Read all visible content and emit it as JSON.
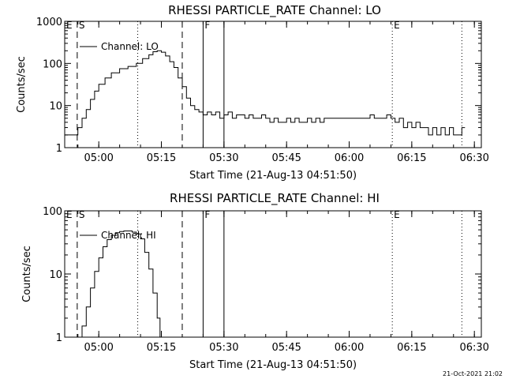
{
  "footer": {
    "timestamp": "21-Oct-2021 21:02"
  },
  "chart_data": [
    {
      "type": "line",
      "title": "RHESSI PARTICLE_RATE Channel: LO",
      "xlabel": "Start Time (21-Aug-13 04:51:50)",
      "ylabel": "Counts/sec",
      "yscale": "log",
      "ylim": [
        1,
        1000
      ],
      "y_ticks": [
        1,
        10,
        100,
        1000
      ],
      "y_tick_labels": [
        "1",
        "10",
        "100",
        "1000"
      ],
      "xlim": [
        "04:51:50",
        "06:31:40"
      ],
      "x_ticks": [
        "05:00",
        "05:15",
        "05:30",
        "05:45",
        "06:00",
        "06:15",
        "06:30"
      ],
      "legend": {
        "label": "Channel: LO",
        "position": "top-left"
      },
      "markers": [
        {
          "label": "E",
          "time": "04:51:50",
          "style": "dotted"
        },
        {
          "label": "S",
          "time": "04:54:50",
          "style": "dashed"
        },
        {
          "label": "",
          "time": "05:09:20",
          "style": "dotted"
        },
        {
          "label": "",
          "time": "05:20:00",
          "style": "dashed"
        },
        {
          "label": "F",
          "time": "05:25:00",
          "style": "solid"
        },
        {
          "label": "",
          "time": "05:30:00",
          "style": "solid"
        },
        {
          "label": "E",
          "time": "06:10:20",
          "style": "dotted"
        },
        {
          "label": "",
          "time": "06:27:00",
          "style": "dotted"
        }
      ],
      "series": [
        {
          "name": "Channel: LO",
          "x": [
            "04:51:50",
            "04:54:20",
            "04:55:00",
            "04:56:00",
            "04:57:00",
            "04:58:00",
            "04:59:00",
            "05:00:00",
            "05:01:30",
            "05:03:00",
            "05:05:00",
            "05:07:00",
            "05:09:00",
            "05:10:30",
            "05:12:00",
            "05:13:00",
            "05:14:00",
            "05:15:00",
            "05:16:00",
            "05:17:00",
            "05:18:00",
            "05:19:00",
            "05:20:00",
            "05:21:00",
            "05:22:00",
            "05:23:00",
            "05:24:00",
            "05:25:00",
            "05:26:00",
            "05:27:00",
            "05:28:00",
            "05:29:00",
            "05:30:00",
            "05:31:00",
            "05:32:00",
            "05:33:00",
            "05:34:00",
            "05:35:00",
            "05:36:00",
            "05:37:00",
            "05:38:00",
            "05:39:00",
            "05:40:00",
            "05:41:00",
            "05:42:00",
            "05:43:00",
            "05:44:00",
            "05:45:00",
            "05:46:00",
            "05:47:00",
            "05:48:00",
            "05:49:00",
            "05:50:00",
            "05:51:00",
            "05:52:00",
            "05:53:00",
            "05:54:00",
            "05:55:00",
            "05:56:00",
            "05:57:00",
            "05:58:00",
            "05:59:00",
            "06:00:00",
            "06:01:00",
            "06:02:00",
            "06:03:00",
            "06:04:00",
            "06:05:00",
            "06:06:00",
            "06:07:00",
            "06:08:00",
            "06:09:00",
            "06:10:00",
            "06:11:00",
            "06:12:00",
            "06:13:00",
            "06:14:00",
            "06:15:00",
            "06:16:00",
            "06:17:00",
            "06:18:00",
            "06:19:00",
            "06:20:00",
            "06:21:00",
            "06:22:00",
            "06:23:00",
            "06:24:00",
            "06:25:00",
            "06:26:00",
            "06:27:00"
          ],
          "y": [
            2,
            2,
            3,
            5,
            8,
            14,
            22,
            32,
            45,
            60,
            75,
            85,
            100,
            130,
            160,
            190,
            200,
            185,
            150,
            110,
            80,
            45,
            28,
            15,
            10,
            8,
            7,
            6,
            7,
            6,
            7,
            5,
            6,
            7,
            5,
            6,
            6,
            5,
            6,
            5,
            5,
            6,
            5,
            4,
            5,
            4,
            4,
            5,
            4,
            5,
            4,
            4,
            5,
            4,
            5,
            4,
            5,
            5,
            5,
            5,
            5,
            5,
            5,
            5,
            5,
            5,
            5,
            6,
            5,
            5,
            5,
            6,
            5,
            4,
            5,
            3,
            4,
            3,
            4,
            3,
            3,
            2,
            3,
            2,
            3,
            2,
            3,
            2,
            2,
            3
          ]
        }
      ]
    },
    {
      "type": "line",
      "title": "RHESSI PARTICLE_RATE Channel: HI",
      "xlabel": "Start Time (21-Aug-13 04:51:50)",
      "ylabel": "Counts/sec",
      "yscale": "log",
      "ylim": [
        1,
        100
      ],
      "y_ticks": [
        1,
        10,
        100
      ],
      "y_tick_labels": [
        "1",
        "10",
        "100"
      ],
      "xlim": [
        "04:51:50",
        "06:31:40"
      ],
      "x_ticks": [
        "05:00",
        "05:15",
        "05:30",
        "05:45",
        "06:00",
        "06:15",
        "06:30"
      ],
      "legend": {
        "label": "Channel: HI",
        "position": "top-left"
      },
      "markers": [
        {
          "label": "E",
          "time": "04:51:50",
          "style": "dotted"
        },
        {
          "label": "S",
          "time": "04:54:50",
          "style": "dashed"
        },
        {
          "label": "",
          "time": "05:09:20",
          "style": "dotted"
        },
        {
          "label": "",
          "time": "05:20:00",
          "style": "dashed"
        },
        {
          "label": "F",
          "time": "05:25:00",
          "style": "solid"
        },
        {
          "label": "",
          "time": "05:30:00",
          "style": "solid"
        },
        {
          "label": "E",
          "time": "06:10:20",
          "style": "dotted"
        },
        {
          "label": "",
          "time": "06:27:00",
          "style": "dotted"
        }
      ],
      "series": [
        {
          "name": "Channel: HI",
          "x": [
            "04:55:30",
            "04:56:00",
            "04:57:00",
            "04:58:00",
            "04:59:00",
            "05:00:00",
            "05:01:00",
            "05:02:00",
            "05:03:00",
            "05:04:00",
            "05:05:00",
            "05:06:00",
            "05:07:00",
            "05:08:00",
            "05:09:00",
            "05:10:00",
            "05:11:00",
            "05:12:00",
            "05:13:00",
            "05:14:00",
            "05:14:40"
          ],
          "y": [
            1,
            1.5,
            3,
            6,
            11,
            18,
            27,
            35,
            41,
            45,
            47,
            48,
            48,
            46,
            43,
            36,
            22,
            12,
            5,
            2,
            1
          ]
        }
      ]
    }
  ]
}
